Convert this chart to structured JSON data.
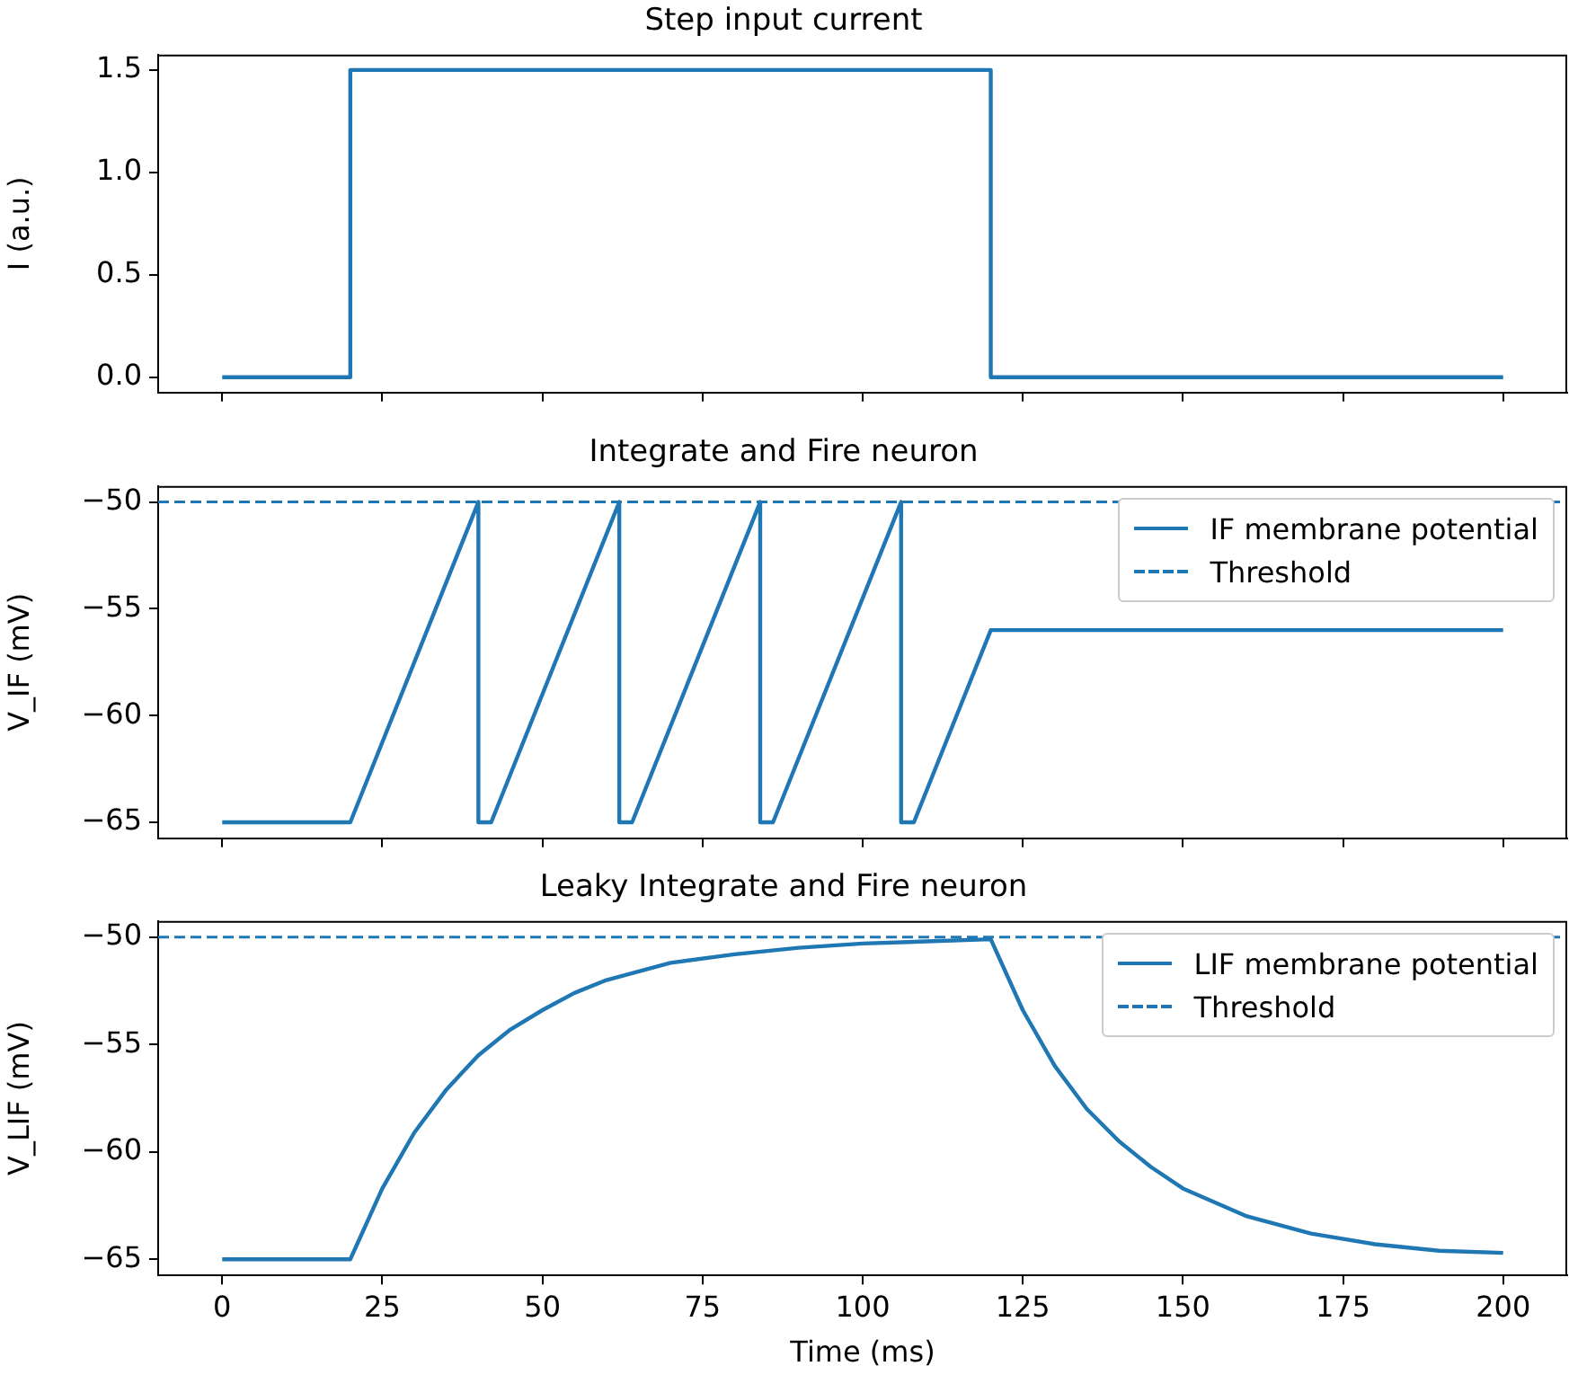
{
  "chart_data": [
    {
      "type": "line",
      "title": "Step input current",
      "ylabel": "I (a.u.)",
      "x": [
        0,
        20,
        20,
        120,
        120,
        200
      ],
      "series": [
        {
          "color": "#1f77b4",
          "values": [
            0,
            0,
            1.5,
            1.5,
            0,
            0
          ]
        }
      ],
      "xlim": [
        -10,
        210
      ],
      "xticks": [
        0,
        25,
        50,
        75,
        100,
        125,
        150,
        175,
        200
      ],
      "ylim": [
        -0.075,
        1.575
      ],
      "yticks": [
        {
          "value": 0,
          "label": "0.0"
        },
        {
          "value": 0.5,
          "label": "0.5"
        },
        {
          "value": 1,
          "label": "1.0"
        },
        {
          "value": 1.5,
          "label": "1.5"
        }
      ],
      "tick_labels": "y"
    },
    {
      "type": "line",
      "title": "Integrate and Fire neuron",
      "ylabel": "V_IF (mV)",
      "x": [
        0,
        20,
        40,
        40,
        42,
        62,
        62,
        64,
        84,
        84,
        86,
        106,
        106,
        108,
        120,
        200
      ],
      "series": [
        {
          "name": "IF membrane potential",
          "color": "#1f77b4",
          "values": [
            -65,
            -65,
            -50,
            -65,
            -65,
            -50,
            -65,
            -65,
            -50,
            -65,
            -65,
            -50,
            -65,
            -65,
            -56,
            -56
          ]
        }
      ],
      "ref_lines": [
        {
          "axis": "y",
          "value": -50,
          "label": "Threshold",
          "color": "#1f77b4",
          "line_style": "dashed"
        }
      ],
      "xlim": [
        -10,
        210
      ],
      "xticks": [
        0,
        25,
        50,
        75,
        100,
        125,
        150,
        175,
        200
      ],
      "ylim": [
        -65.75,
        -49.25
      ],
      "yticks": [
        {
          "value": -65,
          "label": "−65"
        },
        {
          "value": -60,
          "label": "−60"
        },
        {
          "value": -55,
          "label": "−55"
        },
        {
          "value": -50,
          "label": "−50"
        }
      ],
      "tick_labels": "y",
      "legend": "top right"
    },
    {
      "type": "line",
      "title": "Leaky Integrate and Fire neuron",
      "ylabel": "V_LIF (mV)",
      "xlabel": "Time (ms)",
      "x": [
        0,
        20,
        25,
        30,
        35,
        40,
        45,
        50,
        55,
        60,
        70,
        80,
        90,
        100,
        110,
        120,
        125,
        130,
        135,
        140,
        145,
        150,
        160,
        170,
        180,
        190,
        200
      ],
      "series": [
        {
          "name": "LIF membrane potential",
          "color": "#1f77b4",
          "values": [
            -65,
            -65,
            -61.7,
            -59.1,
            -57.1,
            -55.5,
            -54.3,
            -53.4,
            -52.6,
            -52.0,
            -51.2,
            -50.8,
            -50.5,
            -50.3,
            -50.2,
            -50.1,
            -53.4,
            -56.0,
            -58.0,
            -59.5,
            -60.7,
            -61.7,
            -63.0,
            -63.8,
            -64.3,
            -64.6,
            -64.7
          ]
        }
      ],
      "ref_lines": [
        {
          "axis": "y",
          "value": -50,
          "label": "Threshold",
          "color": "#1f77b4",
          "line_style": "dashed"
        }
      ],
      "xlim": [
        -10,
        210
      ],
      "xticks": [
        0,
        25,
        50,
        75,
        100,
        125,
        150,
        175,
        200
      ],
      "ylim": [
        -65.75,
        -49.25
      ],
      "yticks": [
        {
          "value": -65,
          "label": "−65"
        },
        {
          "value": -60,
          "label": "−60"
        },
        {
          "value": -55,
          "label": "−55"
        },
        {
          "value": -50,
          "label": "−50"
        }
      ],
      "legend": "top right"
    }
  ]
}
